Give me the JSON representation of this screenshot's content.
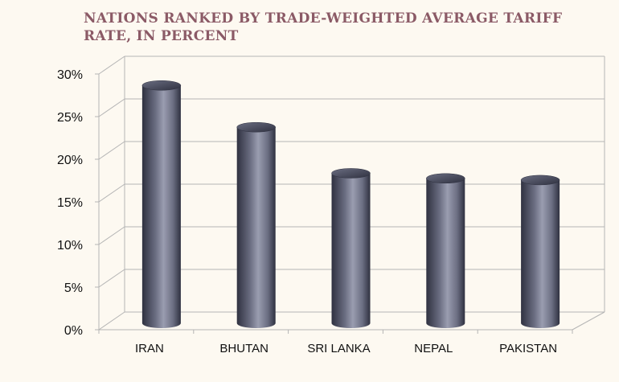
{
  "colors": {
    "background": "#fdf9f1",
    "title": "#8b5a66",
    "bar_dark": "#2f3140",
    "bar_mid": "#6b6e82",
    "bar_light": "#9a9db0",
    "grid": "#b5b5b5"
  },
  "chart_data": {
    "type": "bar",
    "title": "NATIONS RANKED BY TRADE-WEIGHTED AVERAGE TARIFF RATE, IN PERCENT",
    "categories": [
      "IRAN",
      "BHUTAN",
      "SRI LANKA",
      "NEPAL",
      "PAKISTAN"
    ],
    "values": [
      27.9,
      23.0,
      17.6,
      17.0,
      16.8
    ],
    "unit": "%",
    "ylim": [
      0,
      30
    ],
    "yticks": [
      0,
      5,
      10,
      15,
      20,
      25,
      30
    ],
    "ytick_labels": [
      "0%",
      "5%",
      "10%",
      "15%",
      "20%",
      "25%",
      "30%"
    ],
    "grid": true,
    "style": "3d-cylinder",
    "legend": "none"
  }
}
